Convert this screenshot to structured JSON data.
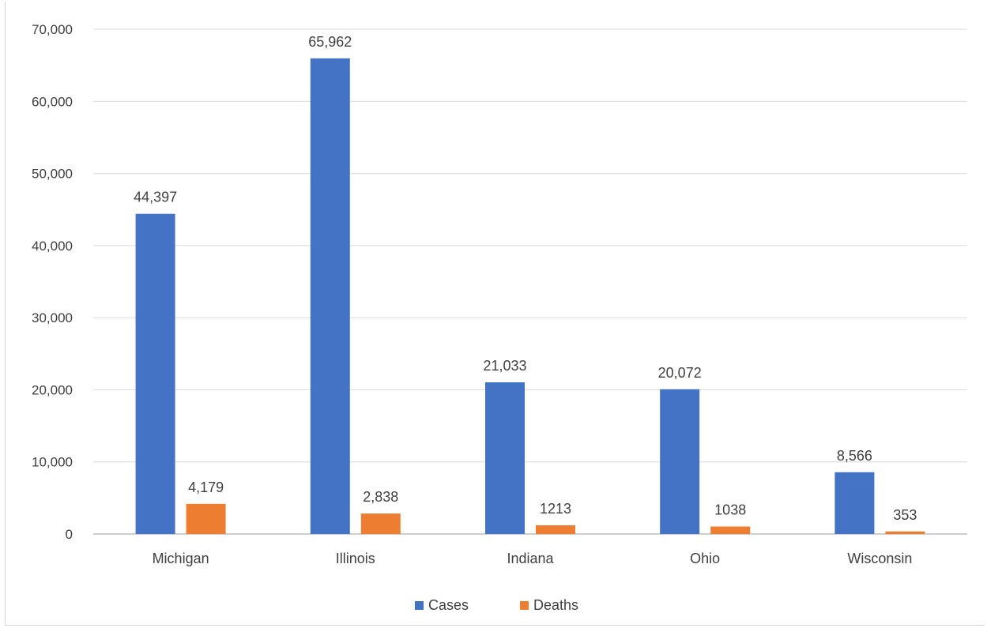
{
  "chart_data": {
    "type": "bar",
    "categories": [
      "Michigan",
      "Illinois",
      "Indiana",
      "Ohio",
      "Wisconsin"
    ],
    "series": [
      {
        "name": "Cases",
        "color": "#4472C4",
        "values": [
          44397,
          65962,
          21033,
          20072,
          8566
        ],
        "labels": [
          "44,397",
          "65,962",
          "21,033",
          "20,072",
          "8,566"
        ]
      },
      {
        "name": "Deaths",
        "color": "#ED7D31",
        "values": [
          4179,
          2838,
          1213,
          1038,
          353
        ],
        "labels": [
          "4,179",
          "2,838",
          "1213",
          "1038",
          "353"
        ]
      }
    ],
    "ylim": [
      0,
      70000
    ],
    "yticks": [
      0,
      10000,
      20000,
      30000,
      40000,
      50000,
      60000,
      70000
    ],
    "ytick_labels": [
      "0",
      "10,000",
      "20,000",
      "30,000",
      "40,000",
      "50,000",
      "60,000",
      "70,000"
    ],
    "grid": true,
    "legend_position": "bottom",
    "title": "",
    "xlabel": "",
    "ylabel": ""
  }
}
